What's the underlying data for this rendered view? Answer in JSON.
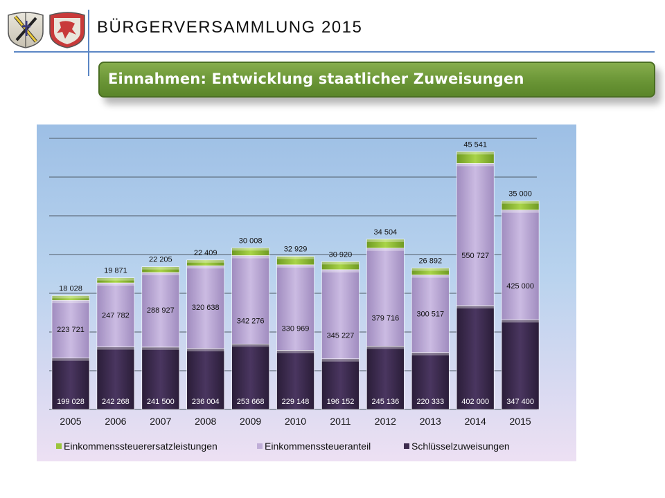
{
  "header": {
    "title": "BÜRGERVERSAMMLUNG  2015"
  },
  "banner": {
    "title": "Einnahmen: Entwicklung staatlicher Zuweisungen"
  },
  "logos": [
    "coat-of-arms-icon",
    "coat-of-arms-icon"
  ],
  "chart_data": {
    "type": "bar",
    "stacked": true,
    "categories": [
      "2005",
      "2006",
      "2007",
      "2008",
      "2009",
      "2010",
      "2011",
      "2012",
      "2013",
      "2014",
      "2015"
    ],
    "series": [
      {
        "name": "Schlüsselzuweisungen",
        "color": "#3d2b4e",
        "values": [
          199028,
          242268,
          241500,
          236004,
          253668,
          229148,
          196152,
          245136,
          220333,
          402000,
          347400
        ],
        "labels": [
          "199 028",
          "242 268",
          "241 500",
          "236 004",
          "253 668",
          "229 148",
          "196 152",
          "245 136",
          "220 333",
          "402 000",
          "347 400"
        ]
      },
      {
        "name": "Einkommenssteueranteil",
        "color": "#c0aed8",
        "values": [
          223721,
          247782,
          288927,
          320638,
          342276,
          330969,
          345227,
          379716,
          300517,
          550727,
          425000
        ],
        "labels": [
          "223 721",
          "247 782",
          "288 927",
          "320 638",
          "342 276",
          "330 969",
          "345 227",
          "379 716",
          "300 517",
          "550 727",
          "425 000"
        ]
      },
      {
        "name": "Einkommenssteuerersatzleistungen",
        "color": "#9bc53d",
        "values": [
          18028,
          19871,
          22205,
          22409,
          30008,
          32929,
          30920,
          34504,
          26892,
          45541,
          35000
        ],
        "labels": [
          "18 028",
          "19 871",
          "22 205",
          "22 409",
          "30 008",
          "32 929",
          "30 920",
          "34 504",
          "26 892",
          "45 541",
          "35 000"
        ]
      }
    ],
    "legend": [
      "Einkommenssteuerersatzleistungen",
      "Einkommenssteueranteil",
      "Schlüsselzuweisungen"
    ],
    "legend_position": "bottom",
    "grid": true,
    "ylim": [
      0,
      1050000
    ],
    "xlabel": "",
    "ylabel": ""
  }
}
